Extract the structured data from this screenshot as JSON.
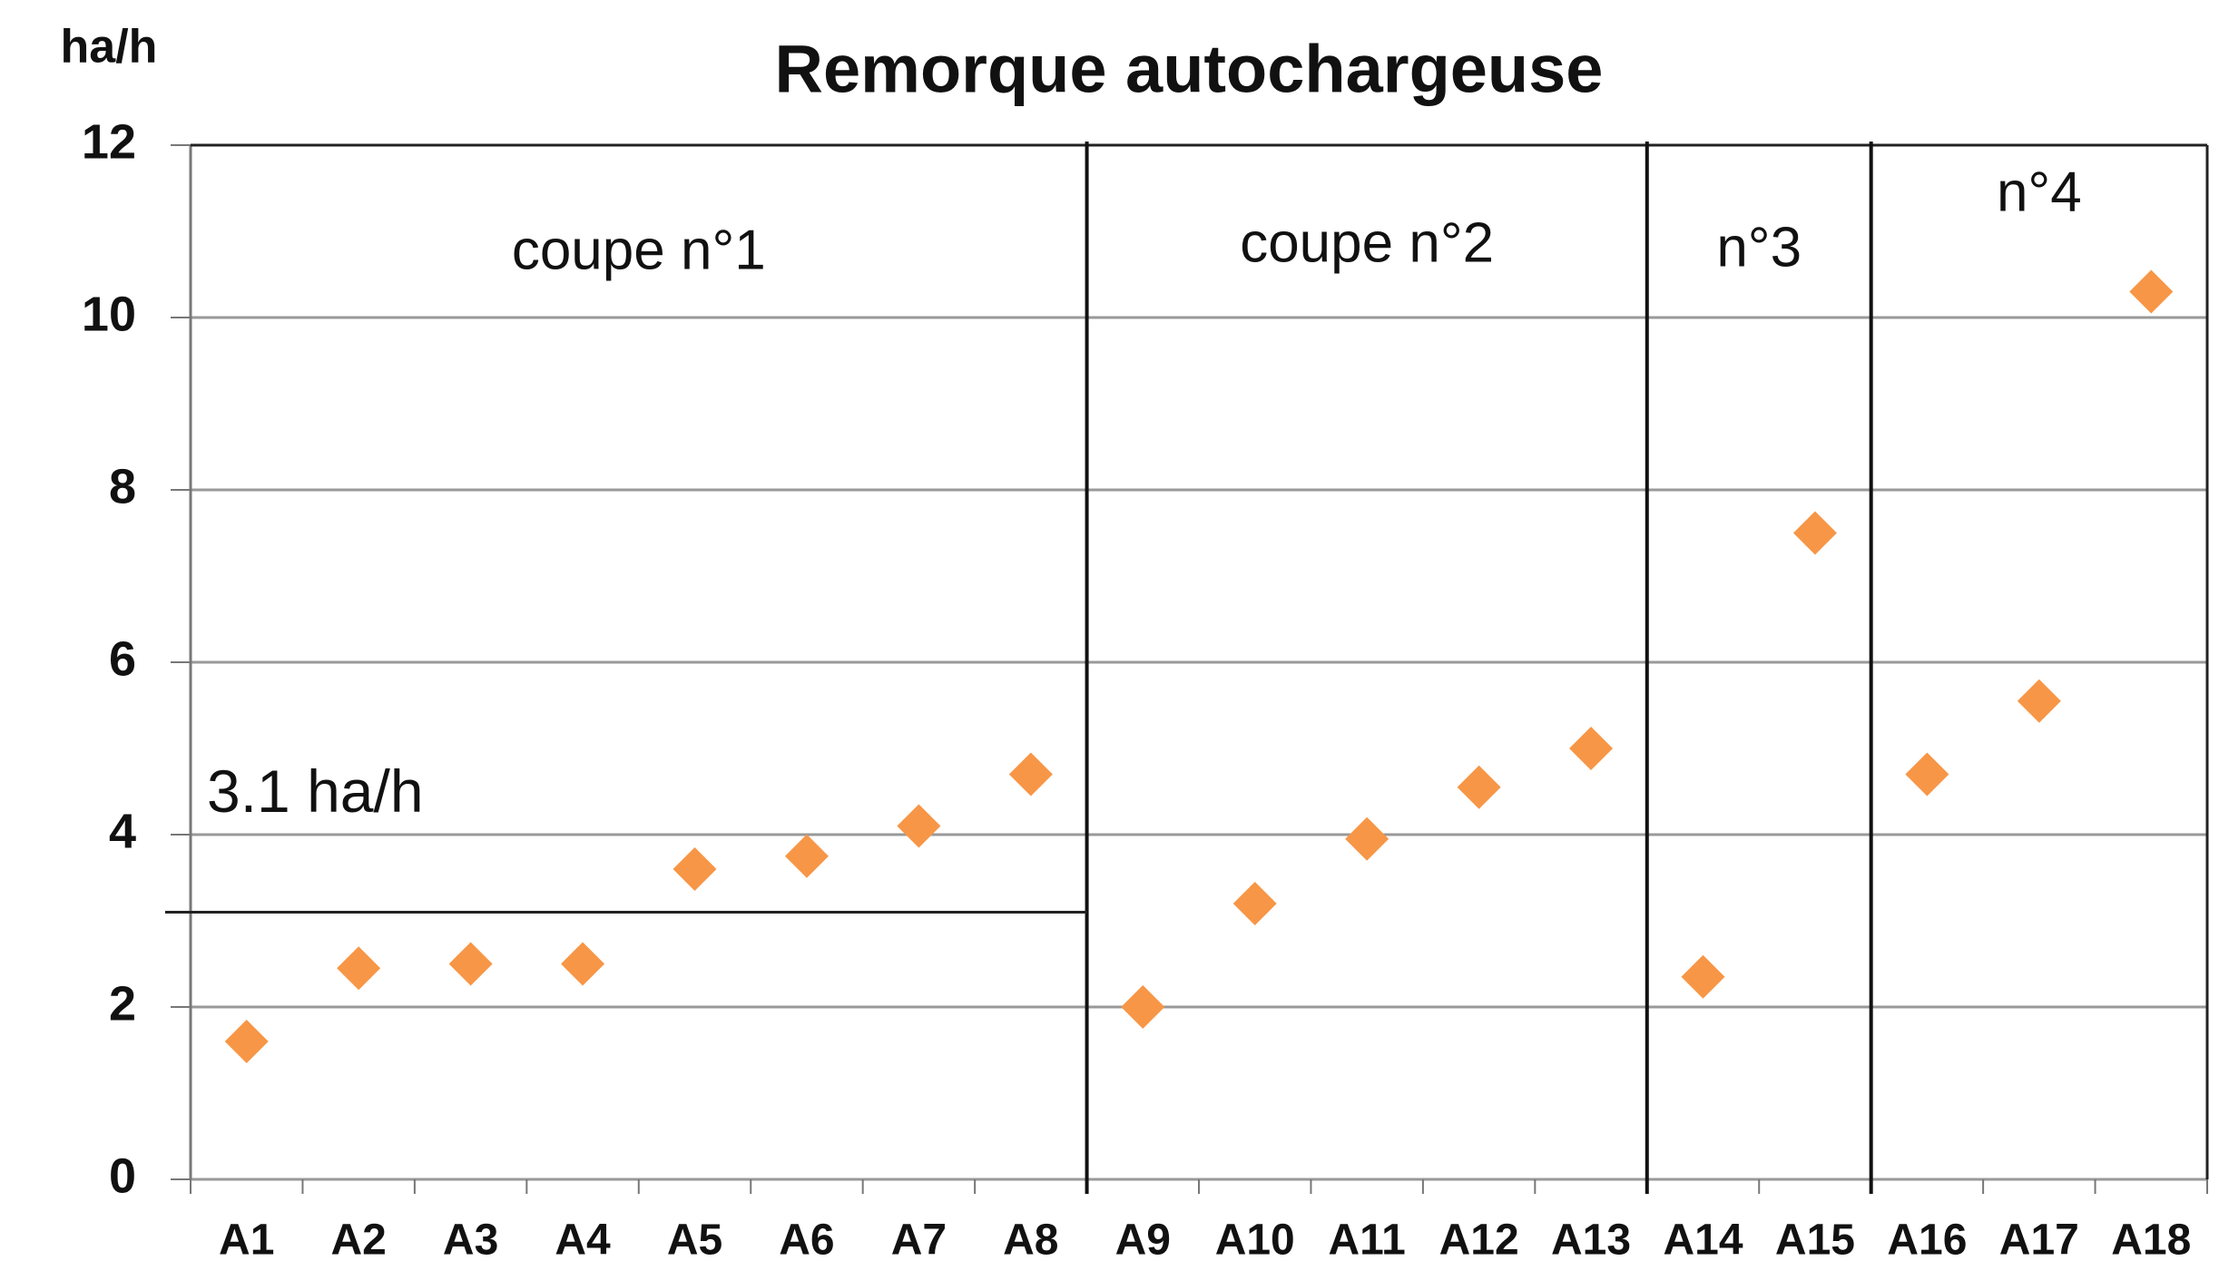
{
  "chart_data": {
    "type": "scatter",
    "title": "Remorque autochargeuse",
    "y_label": "ha/h",
    "categories": [
      "A1",
      "A2",
      "A3",
      "A4",
      "A5",
      "A6",
      "A7",
      "A8",
      "A9",
      "A10",
      "A11",
      "A12",
      "A13",
      "A14",
      "A15",
      "A16",
      "A17",
      "A18"
    ],
    "series": [
      {
        "name": "ha/h",
        "color": "#f79646",
        "values": [
          1.6,
          2.45,
          2.5,
          2.5,
          3.6,
          3.75,
          4.1,
          4.7,
          2.0,
          3.2,
          3.95,
          4.55,
          5.0,
          2.35,
          7.5,
          4.7,
          5.55,
          10.3
        ]
      }
    ],
    "ylim": [
      0,
      12
    ],
    "yticks": [
      0,
      2,
      4,
      6,
      8,
      10,
      12
    ],
    "grid": true,
    "groups": [
      {
        "label": "coupe n°1",
        "first": "A1",
        "last": "A8"
      },
      {
        "label": "coupe n°2",
        "first": "A9",
        "last": "A13"
      },
      {
        "label": "n°3",
        "first": "A14",
        "last": "A15"
      },
      {
        "label": "n°4",
        "first": "A16",
        "last": "A18"
      }
    ],
    "reference_line": {
      "value": 3.1,
      "label": "3.1 ha/h",
      "first": "A1",
      "last": "A8"
    }
  }
}
